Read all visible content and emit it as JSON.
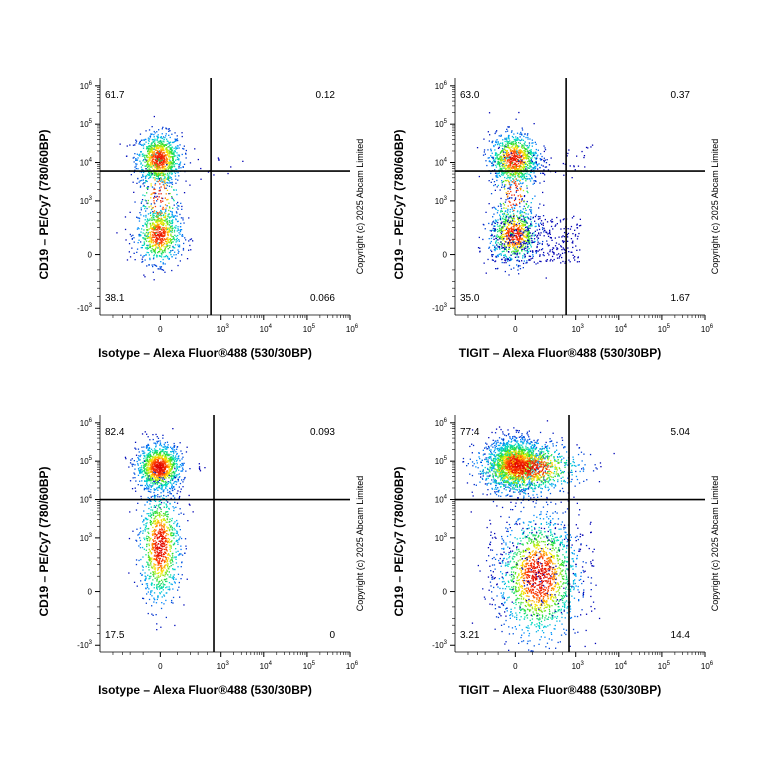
{
  "copyright": "Copyright (c) 2025 Abcam Limited",
  "colors": {
    "gate": "#000000",
    "density_low": "#0000cc",
    "density_mid": "#00c8c8",
    "density_high": "#ff0000"
  },
  "chart_data": [
    {
      "type": "scatter",
      "xlabel": "Isotype – Alexa Fluor®488 (530/30BP)",
      "ylabel": "CD19 – PE/Cy7 (780/60BP)",
      "x_scale": "biexponential",
      "y_scale": "biexponential",
      "x_ticks": [
        "0",
        "10^3",
        "10^4",
        "10^5",
        "10^6"
      ],
      "y_ticks": [
        "-10^3",
        "0",
        "10^3",
        "10^4",
        "10^5",
        "10^6"
      ],
      "gate": {
        "x": 600,
        "y": 6000
      },
      "quadrants": {
        "upper_left": "61.7",
        "upper_right": "0.12",
        "lower_left": "38.1",
        "lower_right": "0.066"
      }
    },
    {
      "type": "scatter",
      "xlabel": "TIGIT – Alexa Fluor®488 (530/30BP)",
      "ylabel": "CD19 – PE/Cy7 (780/60BP)",
      "x_scale": "biexponential",
      "y_scale": "biexponential",
      "x_ticks": [
        "0",
        "10^3",
        "10^4",
        "10^5",
        "10^6"
      ],
      "y_ticks": [
        "-10^3",
        "0",
        "10^3",
        "10^4",
        "10^5",
        "10^6"
      ],
      "gate": {
        "x": 600,
        "y": 6000
      },
      "quadrants": {
        "upper_left": "63.0",
        "upper_right": "0.37",
        "lower_left": "35.0",
        "lower_right": "1.67"
      }
    },
    {
      "type": "scatter",
      "xlabel": "Isotype – Alexa Fluor®488 (530/30BP)",
      "ylabel": "CD19 – PE/Cy7 (780/60BP)",
      "x_scale": "biexponential",
      "y_scale": "biexponential",
      "x_ticks": [
        "0",
        "10^3",
        "10^4",
        "10^5",
        "10^6"
      ],
      "y_ticks": [
        "-10^3",
        "0",
        "10^3",
        "10^4",
        "10^5",
        "10^6"
      ],
      "gate": {
        "x": 700,
        "y": 10000
      },
      "quadrants": {
        "upper_left": "82.4",
        "upper_right": "0.093",
        "lower_left": "17.5",
        "lower_right": "0"
      }
    },
    {
      "type": "scatter",
      "xlabel": "TIGIT – Alexa Fluor®488 (530/30BP)",
      "ylabel": "CD19 – PE/Cy7 (780/60BP)",
      "x_scale": "biexponential",
      "y_scale": "biexponential",
      "x_ticks": [
        "0",
        "10^3",
        "10^4",
        "10^5",
        "10^6"
      ],
      "y_ticks": [
        "-10^3",
        "0",
        "10^3",
        "10^4",
        "10^5",
        "10^6"
      ],
      "gate": {
        "x": 700,
        "y": 10000
      },
      "quadrants": {
        "upper_left": "77.4",
        "upper_right": "5.04",
        "lower_left": "3.21",
        "lower_right": "14.4"
      }
    }
  ]
}
